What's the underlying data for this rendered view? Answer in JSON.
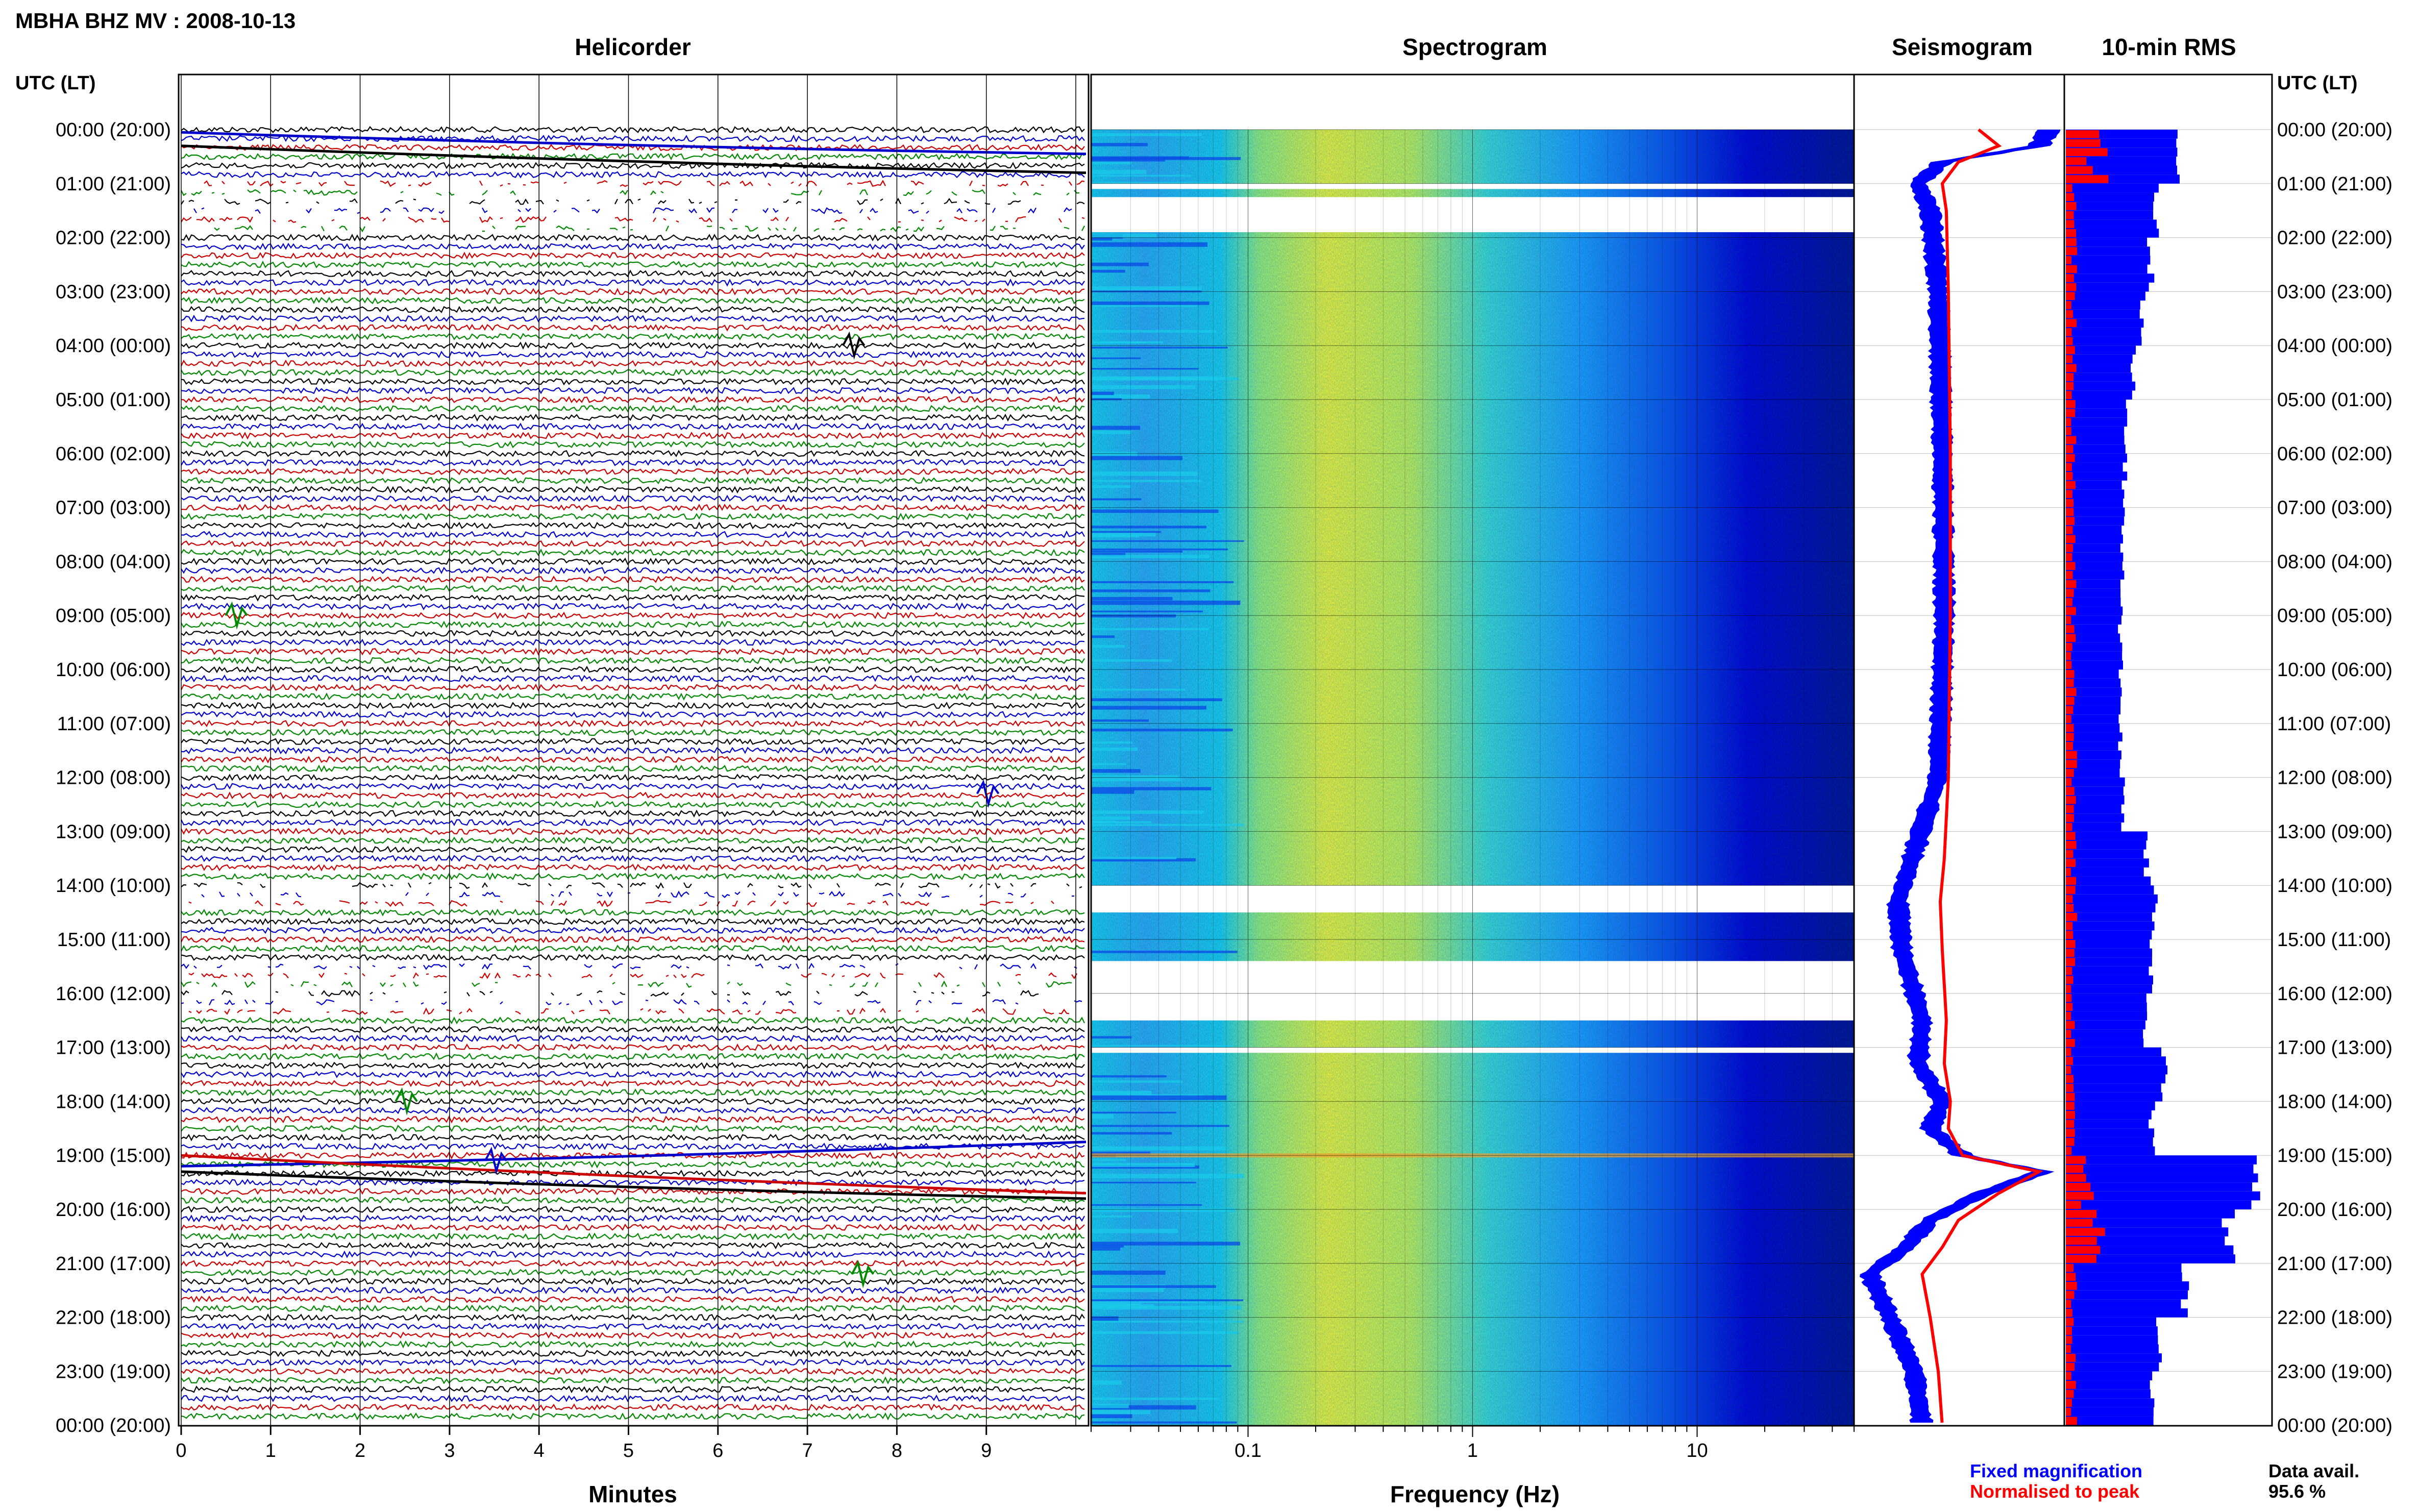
{
  "header": {
    "title": "MBHA BHZ MV : 2008-10-13"
  },
  "panels": {
    "helicorder": "Helicorder",
    "spectrogram": "Spectrogram",
    "seismogram": "Seismogram",
    "rms": "10-min RMS"
  },
  "axis_labels": {
    "time_header": "UTC (LT)",
    "minutes": "Minutes",
    "frequency": "Frequency (Hz)"
  },
  "legend": {
    "fixed": "Fixed magnification",
    "normalised": "Normalised to peak",
    "fixed_color": "#0000ff",
    "normalised_color": "#ff0000"
  },
  "data_availability": {
    "label": "Data avail.",
    "value": "95.6 %"
  },
  "colors": {
    "trace_cycle": [
      "#000000",
      "#0000cc",
      "#cc0000",
      "#008800"
    ],
    "rms_blue": "#0000ff",
    "rms_red": "#ff0000"
  },
  "chart_data": [
    {
      "type": "line",
      "name": "helicorder",
      "xlabel": "Minutes",
      "xlim": [
        0,
        10
      ],
      "x_ticks": [
        "0",
        "1",
        "2",
        "3",
        "4",
        "5",
        "6",
        "7",
        "8",
        "9"
      ],
      "hour_labels": [
        "00:00 (20:00)",
        "01:00 (21:00)",
        "02:00 (22:00)",
        "03:00 (23:00)",
        "04:00 (00:00)",
        "05:00 (01:00)",
        "06:00 (02:00)",
        "07:00 (03:00)",
        "08:00 (04:00)",
        "09:00 (05:00)",
        "10:00 (06:00)",
        "11:00 (07:00)",
        "12:00 (08:00)",
        "13:00 (09:00)",
        "14:00 (10:00)",
        "15:00 (11:00)",
        "16:00 (12:00)",
        "17:00 (13:00)",
        "18:00 (14:00)",
        "19:00 (15:00)",
        "20:00 (16:00)",
        "21:00 (17:00)",
        "22:00 (18:00)",
        "23:00 (19:00)",
        "00:00 (20:00)"
      ],
      "lines_per_hour": 6,
      "gaps_hours": [
        [
          1.0,
          1.9
        ],
        [
          14.0,
          14.5
        ],
        [
          15.4,
          16.5
        ]
      ]
    },
    {
      "type": "heatmap",
      "name": "spectrogram",
      "xlabel": "Frequency (Hz)",
      "x_scale": "log",
      "xlim": [
        0.02,
        50
      ],
      "x_ticks": [
        "0.1",
        "1",
        "10"
      ],
      "colormap": [
        "#000066",
        "#0000cc",
        "#1c6cff",
        "#19c8e8",
        "#8ee87a",
        "#e6ef3c"
      ],
      "gaps_hours": [
        [
          1.0,
          1.1
        ],
        [
          1.25,
          1.9
        ],
        [
          14.0,
          14.5
        ],
        [
          15.4,
          16.5
        ],
        [
          17.0,
          17.1
        ]
      ]
    },
    {
      "type": "line",
      "name": "seismogram",
      "series": [
        {
          "name": "Fixed magnification",
          "color": "#0000ff",
          "hours": [
            0.0,
            0.3,
            0.6,
            1.0,
            1.5,
            3,
            6,
            9,
            12,
            13.5,
            14.3,
            15.2,
            16.5,
            17.3,
            18.0,
            18.5,
            19.0,
            19.3,
            19.7,
            20.2,
            20.7,
            21.2,
            22,
            23,
            24
          ],
          "amplitude": [
            0.95,
            0.9,
            0.42,
            0.3,
            0.36,
            0.4,
            0.42,
            0.43,
            0.4,
            0.27,
            0.2,
            0.22,
            0.32,
            0.3,
            0.42,
            0.36,
            0.52,
            0.92,
            0.62,
            0.36,
            0.24,
            0.06,
            0.16,
            0.28,
            0.32
          ]
        },
        {
          "name": "Normalised to peak",
          "color": "#ff0000",
          "hours": [
            0.0,
            0.3,
            0.6,
            1.0,
            1.5,
            3,
            6,
            9,
            12,
            13.5,
            14.3,
            15.2,
            16.5,
            17.3,
            18.0,
            18.5,
            19.0,
            19.3,
            19.7,
            20.2,
            20.7,
            21.2,
            22,
            23,
            24
          ],
          "amplitude": [
            0.6,
            0.7,
            0.5,
            0.42,
            0.44,
            0.45,
            0.46,
            0.46,
            0.45,
            0.43,
            0.41,
            0.42,
            0.44,
            0.43,
            0.46,
            0.45,
            0.52,
            0.9,
            0.7,
            0.5,
            0.42,
            0.32,
            0.36,
            0.4,
            0.42
          ]
        }
      ]
    },
    {
      "type": "bar",
      "name": "rms",
      "orientation": "horizontal",
      "bins_per_hour": 6,
      "blue_level_by_hour": [
        0.55,
        0.45,
        0.42,
        0.38,
        0.33,
        0.3,
        0.29,
        0.28,
        0.28,
        0.27,
        0.27,
        0.27,
        0.28,
        0.4,
        0.44,
        0.42,
        0.4,
        0.48,
        0.43,
        0.95,
        0.8,
        0.58,
        0.46,
        0.42
      ],
      "red_level_by_hour": [
        0.15,
        0.04,
        0.04,
        0.04,
        0.04,
        0.04,
        0.04,
        0.04,
        0.04,
        0.04,
        0.04,
        0.04,
        0.04,
        0.04,
        0.04,
        0.04,
        0.04,
        0.04,
        0.04,
        0.12,
        0.14,
        0.04,
        0.04,
        0.04
      ]
    }
  ]
}
